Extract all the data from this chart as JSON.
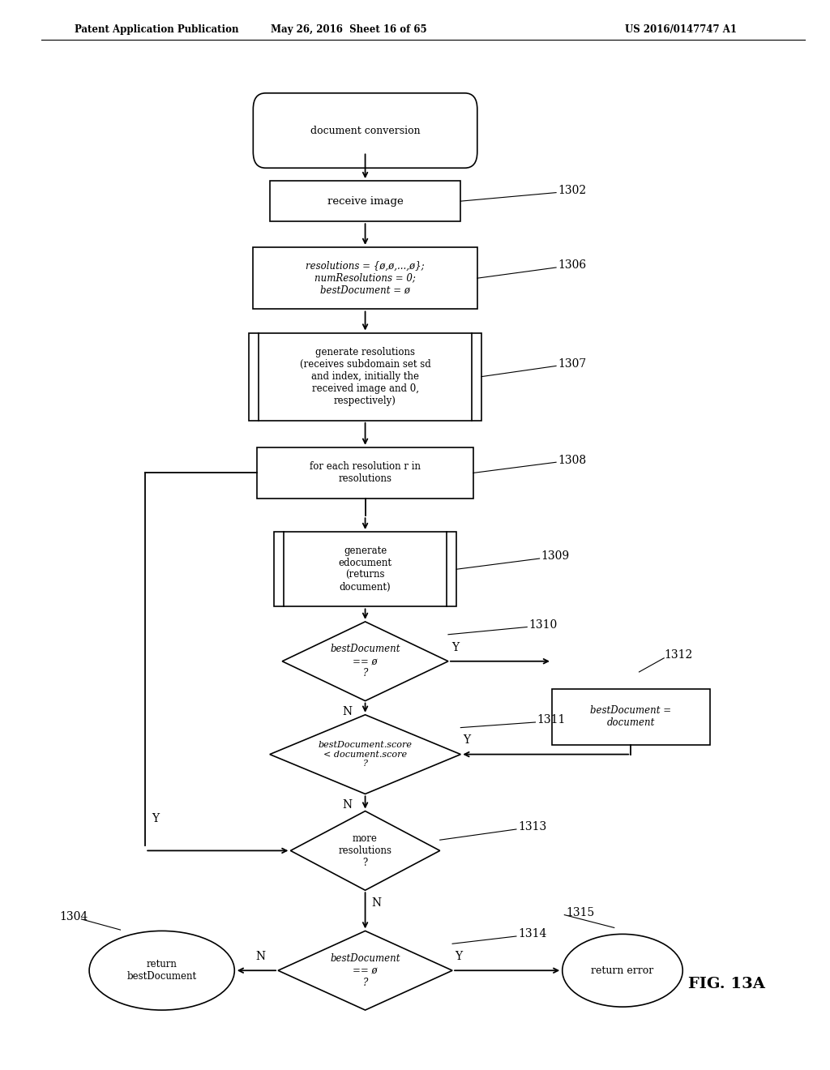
{
  "bg_color": "#ffffff",
  "header_left": "Patent Application Publication",
  "header_center": "May 26, 2016  Sheet 16 of 65",
  "header_right": "US 2016/0147747 A1",
  "fig_label": "FIG. 13A"
}
